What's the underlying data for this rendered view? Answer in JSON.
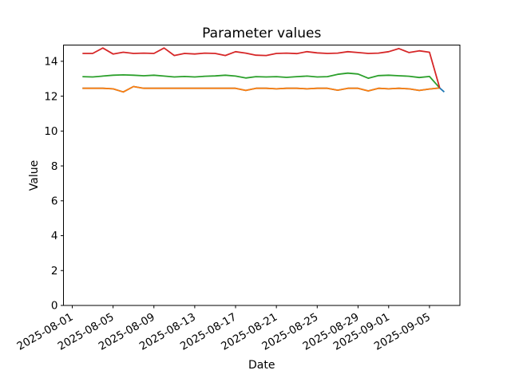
{
  "chart_data": {
    "type": "line",
    "title": "Parameter values",
    "xlabel": "Date",
    "ylabel": "Value",
    "grid": false,
    "legend": "none",
    "x_axis_origin_date": "2025-08-01",
    "xlim_days": [
      -0.86,
      37.98
    ],
    "ylim": [
      0,
      14.93
    ],
    "y_ticks": [
      0,
      2,
      4,
      6,
      8,
      10,
      12,
      14
    ],
    "x_tick_labels": [
      "2025-08-01",
      "2025-08-05",
      "2025-08-09",
      "2025-08-13",
      "2025-08-17",
      "2025-08-21",
      "2025-08-25",
      "2025-08-29",
      "2025-09-01",
      "2025-09-05"
    ],
    "dates": [
      "2025-08-02",
      "2025-08-03",
      "2025-08-04",
      "2025-08-05",
      "2025-08-06",
      "2025-08-07",
      "2025-08-08",
      "2025-08-09",
      "2025-08-10",
      "2025-08-11",
      "2025-08-12",
      "2025-08-13",
      "2025-08-14",
      "2025-08-15",
      "2025-08-16",
      "2025-08-17",
      "2025-08-18",
      "2025-08-19",
      "2025-08-20",
      "2025-08-21",
      "2025-08-22",
      "2025-08-23",
      "2025-08-24",
      "2025-08-25",
      "2025-08-26",
      "2025-08-27",
      "2025-08-28",
      "2025-08-29",
      "2025-08-30",
      "2025-08-31",
      "2025-09-01",
      "2025-09-02",
      "2025-09-03",
      "2025-09-04",
      "2025-09-05",
      "2025-09-06"
    ],
    "series": [
      {
        "name": "blue",
        "color": "#1f77b4",
        "values": [
          12.45,
          12.45,
          12.45,
          12.42,
          12.24,
          12.55,
          12.45,
          12.45,
          12.45,
          12.45,
          12.45,
          12.45,
          12.45,
          12.45,
          12.45,
          12.45,
          12.33,
          12.45,
          12.45,
          12.42,
          12.45,
          12.45,
          12.42,
          12.45,
          12.45,
          12.34,
          12.45,
          12.45,
          12.3,
          12.45,
          12.42,
          12.45,
          12.42,
          12.33,
          12.41,
          12.47
        ],
        "tail": {
          "date_offset_days": 36.45,
          "value": 12.24
        }
      },
      {
        "name": "orange",
        "color": "#ff7f0e",
        "values": [
          12.45,
          12.45,
          12.45,
          12.42,
          12.24,
          12.55,
          12.45,
          12.45,
          12.45,
          12.45,
          12.45,
          12.45,
          12.45,
          12.45,
          12.45,
          12.45,
          12.33,
          12.45,
          12.45,
          12.42,
          12.45,
          12.45,
          12.42,
          12.45,
          12.45,
          12.34,
          12.45,
          12.45,
          12.3,
          12.45,
          12.42,
          12.45,
          12.42,
          12.33,
          12.41,
          12.47
        ]
      },
      {
        "name": "green",
        "color": "#2ca02c",
        "values": [
          13.12,
          13.1,
          13.15,
          13.2,
          13.22,
          13.2,
          13.17,
          13.2,
          13.15,
          13.1,
          13.13,
          13.1,
          13.14,
          13.16,
          13.2,
          13.15,
          13.04,
          13.12,
          13.1,
          13.12,
          13.08,
          13.12,
          13.15,
          13.1,
          13.12,
          13.25,
          13.32,
          13.27,
          13.03,
          13.18,
          13.2,
          13.17,
          13.14,
          13.07,
          13.13,
          12.47
        ]
      },
      {
        "name": "red",
        "color": "#d62728",
        "values": [
          14.45,
          14.45,
          14.76,
          14.42,
          14.52,
          14.45,
          14.47,
          14.45,
          14.76,
          14.33,
          14.45,
          14.42,
          14.47,
          14.45,
          14.33,
          14.55,
          14.47,
          14.35,
          14.33,
          14.45,
          14.47,
          14.44,
          14.55,
          14.48,
          14.45,
          14.47,
          14.55,
          14.5,
          14.45,
          14.47,
          14.55,
          14.73,
          14.5,
          14.6,
          14.52,
          12.47
        ]
      }
    ]
  }
}
